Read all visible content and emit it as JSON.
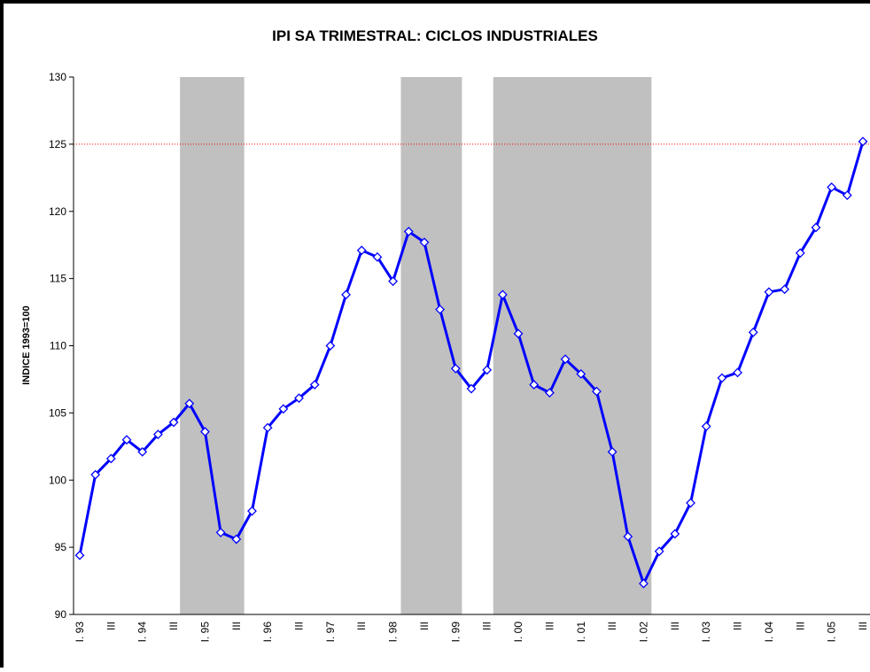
{
  "chart_data": {
    "type": "line",
    "title": "IPI SA TRIMESTRAL: CICLOS INDUSTRIALES",
    "y_label": "INDICE 1993=100",
    "categories": [
      "I. 93",
      null,
      "III",
      null,
      "I. 94",
      null,
      "III",
      null,
      "I. 95",
      null,
      "III",
      null,
      "I. 96",
      null,
      "III",
      null,
      "I. 97",
      null,
      "III",
      null,
      "I. 98",
      null,
      "III",
      null,
      "I. 99",
      null,
      "III",
      null,
      "I. 00",
      null,
      "III",
      null,
      "I. 01",
      null,
      "III",
      null,
      "I. 02",
      null,
      "III",
      null,
      "I. 03",
      null,
      "III",
      null,
      "I. 04",
      null,
      "III",
      null,
      "I. 05",
      null,
      "III"
    ],
    "series": [
      {
        "color": "#0000ff",
        "values": [
          94.4,
          100.4,
          101.6,
          103.0,
          102.1,
          103.4,
          104.3,
          105.7,
          103.6,
          96.1,
          95.6,
          97.7,
          103.9,
          105.3,
          106.1,
          107.1,
          110.0,
          113.8,
          117.1,
          116.6,
          114.8,
          118.5,
          117.7,
          112.7,
          108.3,
          106.8,
          108.2,
          113.8,
          110.9,
          107.1,
          106.5,
          109.0,
          107.9,
          106.6,
          102.1,
          95.8,
          92.3,
          94.7,
          96.0,
          98.3,
          104.0,
          107.6,
          108.0,
          111.0,
          114.0,
          114.2,
          116.9,
          118.8,
          121.8,
          121.2,
          125.2
        ]
      }
    ],
    "ylim": [
      90,
      130
    ],
    "yticks": [
      90,
      95,
      100,
      105,
      110,
      115,
      120,
      125,
      130
    ],
    "reference_line": 125,
    "reference_color": "#ff0000",
    "shaded_periods": [
      [
        6.4,
        10.5
      ],
      [
        20.5,
        24.4
      ],
      [
        26.4,
        36.5
      ]
    ],
    "shade_color": "#c0c0c0"
  }
}
